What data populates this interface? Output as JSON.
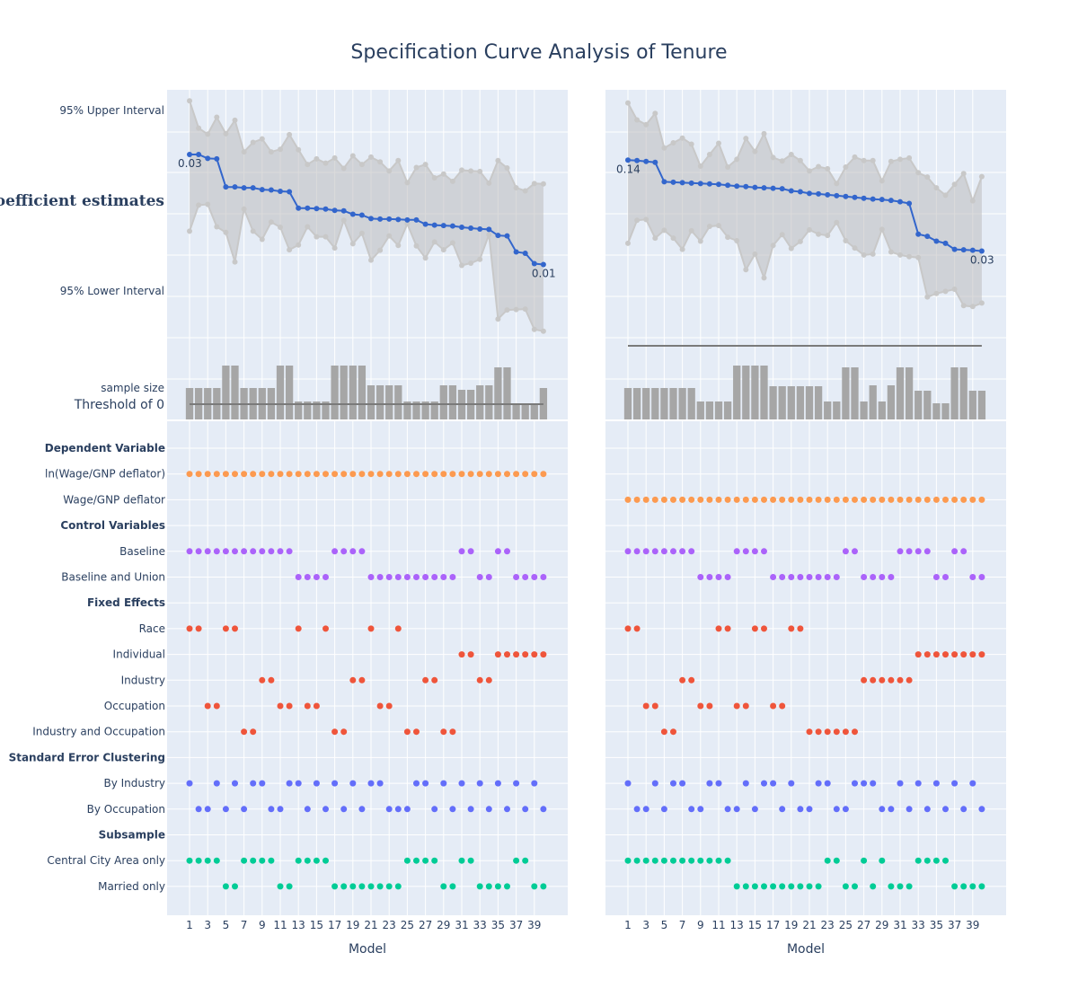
{
  "title": "Specification Curve Analysis of Tenure",
  "x_axis_title": "Model",
  "y_labels": {
    "upper": "95% Upper Interval",
    "coef": "coefficient estimates",
    "lower": "95% Lower Interval",
    "sample": "sample size",
    "threshold": "Threshold of 0"
  },
  "x_tick_labels": [
    "1",
    "3",
    "5",
    "7",
    "9",
    "11",
    "13",
    "15",
    "17",
    "19",
    "21",
    "23",
    "25",
    "27",
    "29",
    "31",
    "33",
    "35",
    "37",
    "39"
  ],
  "rows": [
    {
      "label": "Dependent Variable",
      "header": true
    },
    {
      "label": "ln(Wage/GNP deflator)",
      "color": "#fc9a50"
    },
    {
      "label": "Wage/GNP deflator",
      "color": "#fc9a50"
    },
    {
      "label": "Control Variables",
      "header": true
    },
    {
      "label": "Baseline",
      "color": "#ab63fa"
    },
    {
      "label": "Baseline and Union",
      "color": "#ab63fa"
    },
    {
      "label": "Fixed Effects",
      "header": true
    },
    {
      "label": "Race",
      "color": "#ef553b"
    },
    {
      "label": "Individual",
      "color": "#ef553b"
    },
    {
      "label": "Industry",
      "color": "#ef553b"
    },
    {
      "label": "Occupation",
      "color": "#ef553b"
    },
    {
      "label": "Industry and Occupation",
      "color": "#ef553b"
    },
    {
      "label": "Standard Error Clustering",
      "header": true
    },
    {
      "label": "By Industry",
      "color": "#636efa"
    },
    {
      "label": "By Occupation",
      "color": "#636efa"
    },
    {
      "label": "Subsample",
      "header": true
    },
    {
      "label": "Central City Area only",
      "color": "#00cc96"
    },
    {
      "label": "Married only",
      "color": "#00cc96"
    }
  ],
  "chart_data": [
    {
      "type": "line",
      "panel": "left",
      "x": [
        1,
        2,
        3,
        4,
        5,
        6,
        7,
        8,
        9,
        10,
        11,
        12,
        13,
        14,
        15,
        16,
        17,
        18,
        19,
        20,
        21,
        22,
        23,
        24,
        25,
        26,
        27,
        28,
        29,
        30,
        31,
        32,
        33,
        34,
        35,
        36,
        37,
        38,
        39,
        40
      ],
      "series": [
        {
          "name": "coefficient estimates",
          "values": [
            1.11,
            1.11,
            1.02,
            1.01,
            0.36,
            0.36,
            0.34,
            0.34,
            0.3,
            0.29,
            0.26,
            0.25,
            -0.13,
            -0.13,
            -0.14,
            -0.15,
            -0.18,
            -0.19,
            -0.27,
            -0.29,
            -0.37,
            -0.38,
            -0.38,
            -0.39,
            -0.4,
            -0.4,
            -0.5,
            -0.52,
            -0.53,
            -0.54,
            -0.57,
            -0.59,
            -0.61,
            -0.62,
            -0.76,
            -0.77,
            -1.14,
            -1.17,
            -1.41,
            -1.43
          ]
        },
        {
          "name": "95% Upper Interval",
          "values": [
            2.35,
            1.72,
            1.58,
            1.97,
            1.59,
            1.9,
            1.17,
            1.39,
            1.47,
            1.17,
            1.23,
            1.57,
            1.22,
            0.88,
            1.01,
            0.91,
            1.03,
            0.79,
            1.08,
            0.88,
            1.05,
            0.94,
            0.73,
            0.97,
            0.46,
            0.81,
            0.88,
            0.57,
            0.66,
            0.49,
            0.75,
            0.73,
            0.72,
            0.45,
            0.97,
            0.8,
            0.34,
            0.27,
            0.44,
            0.43
          ]
        },
        {
          "name": "95% Lower Interval",
          "values": [
            -0.66,
            -0.06,
            -0.04,
            -0.56,
            -0.69,
            -1.37,
            -0.15,
            -0.66,
            -0.85,
            -0.45,
            -0.57,
            -1.09,
            -0.98,
            -0.56,
            -0.79,
            -0.79,
            -1.05,
            -0.41,
            -0.95,
            -0.71,
            -1.33,
            -1.1,
            -0.77,
            -0.99,
            -0.49,
            -1.0,
            -1.28,
            -0.91,
            -1.09,
            -0.93,
            -1.45,
            -1.4,
            -1.31,
            -0.74,
            -2.69,
            -2.48,
            -2.47,
            -2.46,
            -2.93,
            -2.97
          ]
        },
        {
          "name": "sample size",
          "values": [
            35,
            35,
            35,
            35,
            60,
            60,
            35,
            35,
            35,
            35,
            60,
            60,
            20,
            20,
            20,
            20,
            60,
            60,
            60,
            60,
            38,
            38,
            38,
            38,
            20,
            20,
            20,
            20,
            38,
            38,
            33,
            33,
            38,
            38,
            58,
            58,
            18,
            18,
            18,
            35
          ]
        }
      ],
      "end_labels": [
        "0.03",
        "0.01"
      ],
      "threshold": 0,
      "indicators": {
        "ln(Wage/GNP deflator)": [
          1,
          2,
          3,
          4,
          5,
          6,
          7,
          8,
          9,
          10,
          11,
          12,
          13,
          14,
          15,
          16,
          17,
          18,
          19,
          20,
          21,
          22,
          23,
          24,
          25,
          26,
          27,
          28,
          29,
          30,
          31,
          32,
          33,
          34,
          35,
          36,
          37,
          38,
          39,
          40
        ],
        "Wage/GNP deflator": [],
        "Baseline": [
          1,
          2,
          3,
          4,
          5,
          6,
          7,
          8,
          9,
          10,
          11,
          12,
          17,
          18,
          19,
          20,
          31,
          32,
          35,
          36
        ],
        "Baseline and Union": [
          13,
          14,
          15,
          16,
          21,
          22,
          23,
          24,
          25,
          26,
          27,
          28,
          29,
          30,
          33,
          34,
          37,
          38,
          39,
          40
        ],
        "Race": [
          1,
          2,
          5,
          6,
          13,
          16,
          21,
          24
        ],
        "Individual": [
          31,
          32,
          35,
          36,
          37,
          38,
          39,
          40
        ],
        "Industry": [
          9,
          10,
          19,
          20,
          27,
          28,
          33,
          34
        ],
        "Occupation": [
          3,
          4,
          11,
          12,
          14,
          15,
          22,
          23
        ],
        "Industry and Occupation": [
          7,
          8,
          17,
          18,
          25,
          26,
          29,
          30
        ],
        "By Industry": [
          1,
          4,
          6,
          8,
          9,
          12,
          13,
          15,
          17,
          19,
          21,
          22,
          26,
          27,
          29,
          31,
          33,
          35,
          37,
          39
        ],
        "By Occupation": [
          2,
          3,
          5,
          7,
          10,
          11,
          14,
          16,
          18,
          20,
          23,
          24,
          25,
          28,
          30,
          32,
          34,
          36,
          38,
          40
        ],
        "Central City Area only": [
          1,
          2,
          3,
          4,
          7,
          8,
          9,
          10,
          13,
          14,
          15,
          16,
          25,
          26,
          27,
          28,
          31,
          32,
          37,
          38
        ],
        "Married only": [
          5,
          6,
          11,
          12,
          17,
          18,
          19,
          20,
          21,
          22,
          23,
          24,
          29,
          30,
          33,
          34,
          35,
          36,
          39,
          40
        ]
      }
    },
    {
      "type": "line",
      "panel": "right",
      "x": [
        1,
        2,
        3,
        4,
        5,
        6,
        7,
        8,
        9,
        10,
        11,
        12,
        13,
        14,
        15,
        16,
        17,
        18,
        19,
        20,
        21,
        22,
        23,
        24,
        25,
        26,
        27,
        28,
        29,
        30,
        31,
        32,
        33,
        34,
        35,
        36,
        37,
        38,
        39,
        40
      ],
      "series": [
        {
          "name": "coefficient estimates",
          "values": [
            0.98,
            0.97,
            0.95,
            0.93,
            0.48,
            0.47,
            0.46,
            0.45,
            0.44,
            0.43,
            0.42,
            0.4,
            0.38,
            0.37,
            0.35,
            0.34,
            0.33,
            0.32,
            0.27,
            0.25,
            0.21,
            0.2,
            0.18,
            0.16,
            0.14,
            0.12,
            0.1,
            0.08,
            0.07,
            0.05,
            0.02,
            -0.02,
            -0.73,
            -0.78,
            -0.89,
            -0.94,
            -1.08,
            -1.09,
            -1.1,
            -1.12
          ]
        },
        {
          "name": "95% Upper Interval",
          "values": [
            2.3,
            1.91,
            1.8,
            2.06,
            1.26,
            1.38,
            1.49,
            1.35,
            0.84,
            1.11,
            1.37,
            0.82,
            1.0,
            1.48,
            1.18,
            1.59,
            1.04,
            0.96,
            1.11,
            0.97,
            0.73,
            0.83,
            0.78,
            0.44,
            0.82,
            1.05,
            0.97,
            0.97,
            0.5,
            0.95,
            1.0,
            1.03,
            0.69,
            0.59,
            0.34,
            0.17,
            0.42,
            0.67,
            0.04,
            0.6
          ]
        },
        {
          "name": "95% Lower Interval",
          "values": [
            -0.94,
            -0.41,
            -0.39,
            -0.82,
            -0.64,
            -0.82,
            -1.08,
            -0.65,
            -0.89,
            -0.55,
            -0.53,
            -0.8,
            -0.88,
            -1.55,
            -1.19,
            -1.74,
            -0.99,
            -0.74,
            -1.06,
            -0.9,
            -0.63,
            -0.73,
            -0.76,
            -0.46,
            -0.88,
            -1.05,
            -1.21,
            -1.19,
            -0.62,
            -1.14,
            -1.21,
            -1.25,
            -1.27,
            -2.18,
            -2.1,
            -2.05,
            -2.0,
            -2.38,
            -2.4,
            -2.32
          ]
        },
        {
          "name": "sample size",
          "values": [
            35,
            35,
            35,
            35,
            35,
            35,
            35,
            35,
            20,
            20,
            20,
            20,
            60,
            60,
            60,
            60,
            37,
            37,
            37,
            37,
            37,
            37,
            20,
            20,
            58,
            58,
            20,
            38,
            20,
            38,
            58,
            58,
            32,
            32,
            18,
            18,
            58,
            58,
            32,
            32
          ]
        }
      ],
      "end_labels": [
        "0.14",
        "0.03"
      ],
      "threshold": 0,
      "indicators": {
        "ln(Wage/GNP deflator)": [],
        "Wage/GNP deflator": [
          1,
          2,
          3,
          4,
          5,
          6,
          7,
          8,
          9,
          10,
          11,
          12,
          13,
          14,
          15,
          16,
          17,
          18,
          19,
          20,
          21,
          22,
          23,
          24,
          25,
          26,
          27,
          28,
          29,
          30,
          31,
          32,
          33,
          34,
          35,
          36,
          37,
          38,
          39,
          40
        ],
        "Baseline": [
          1,
          2,
          3,
          4,
          5,
          6,
          7,
          8,
          13,
          14,
          15,
          16,
          25,
          26,
          31,
          32,
          33,
          34,
          37,
          38
        ],
        "Baseline and Union": [
          9,
          10,
          11,
          12,
          17,
          18,
          19,
          20,
          21,
          22,
          23,
          24,
          27,
          28,
          29,
          30,
          35,
          36,
          39,
          40
        ],
        "Race": [
          1,
          2,
          11,
          12,
          15,
          16,
          19,
          20
        ],
        "Individual": [
          33,
          34,
          35,
          36,
          37,
          38,
          39,
          40
        ],
        "Industry": [
          7,
          8,
          27,
          28,
          29,
          30,
          31,
          32
        ],
        "Occupation": [
          3,
          4,
          9,
          10,
          13,
          14,
          17,
          18
        ],
        "Industry and Occupation": [
          5,
          6,
          21,
          22,
          23,
          24,
          25,
          26
        ],
        "By Industry": [
          1,
          4,
          6,
          7,
          10,
          11,
          14,
          16,
          17,
          19,
          22,
          23,
          26,
          27,
          28,
          31,
          33,
          35,
          37,
          39
        ],
        "By Occupation": [
          2,
          3,
          5,
          8,
          9,
          12,
          13,
          15,
          18,
          20,
          21,
          24,
          25,
          29,
          30,
          32,
          34,
          36,
          38,
          40
        ],
        "Central City Area only": [
          1,
          2,
          3,
          4,
          5,
          6,
          7,
          8,
          9,
          10,
          11,
          12,
          23,
          24,
          27,
          29,
          33,
          34,
          35,
          36
        ],
        "Married only": [
          13,
          14,
          15,
          16,
          17,
          18,
          19,
          20,
          21,
          22,
          25,
          26,
          28,
          30,
          31,
          32,
          37,
          38,
          39,
          40
        ]
      }
    }
  ]
}
